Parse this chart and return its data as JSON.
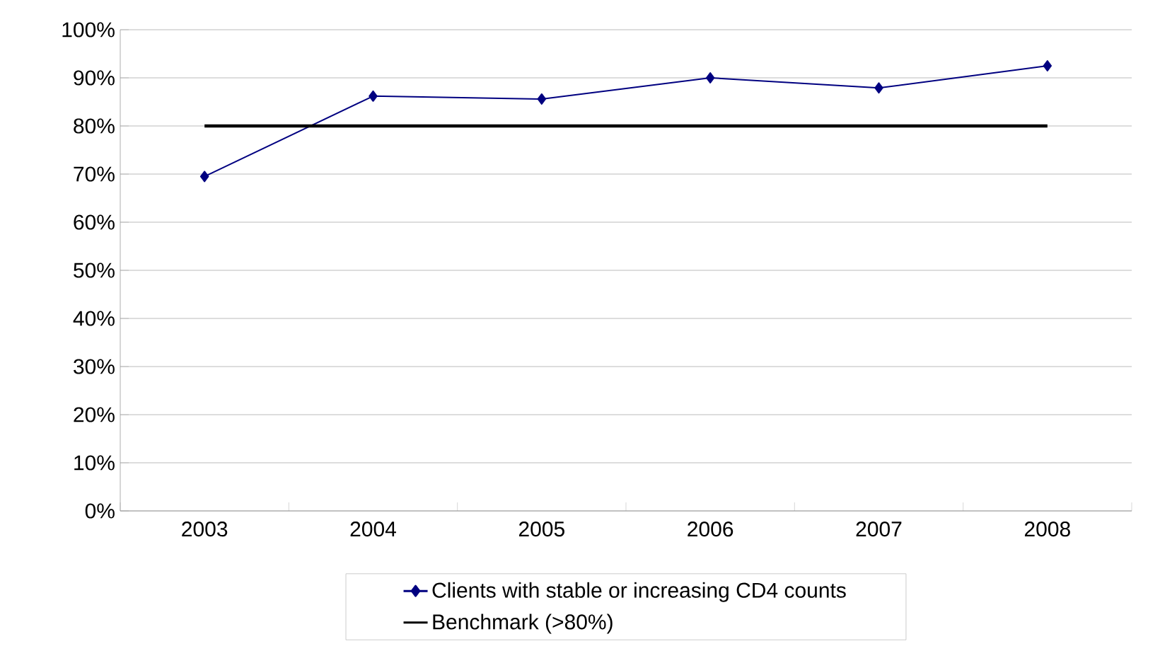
{
  "chart_data": {
    "type": "line",
    "categories": [
      "2003",
      "2004",
      "2005",
      "2006",
      "2007",
      "2008"
    ],
    "series": [
      {
        "name": "Clients with stable or increasing CD4 counts",
        "color": "#000080",
        "marker": "diamond",
        "values": [
          69.5,
          86.2,
          85.6,
          90,
          87.9,
          92.5
        ]
      },
      {
        "name": "Benchmark (>80%)",
        "color": "#000000",
        "marker": "none",
        "values": [
          80,
          80,
          80,
          80,
          80,
          80
        ]
      }
    ],
    "ylim": [
      0,
      100
    ],
    "yticks": [
      {
        "value": 0,
        "label": "0%"
      },
      {
        "value": 10,
        "label": "10%"
      },
      {
        "value": 20,
        "label": "20%"
      },
      {
        "value": 30,
        "label": "30%"
      },
      {
        "value": 40,
        "label": "40%"
      },
      {
        "value": 50,
        "label": "50%"
      },
      {
        "value": 60,
        "label": "60%"
      },
      {
        "value": 70,
        "label": "70%"
      },
      {
        "value": 80,
        "label": "80%"
      },
      {
        "value": 90,
        "label": "90%"
      },
      {
        "value": 100,
        "label": "100%"
      }
    ],
    "grid": "y",
    "legend": "bottom"
  }
}
